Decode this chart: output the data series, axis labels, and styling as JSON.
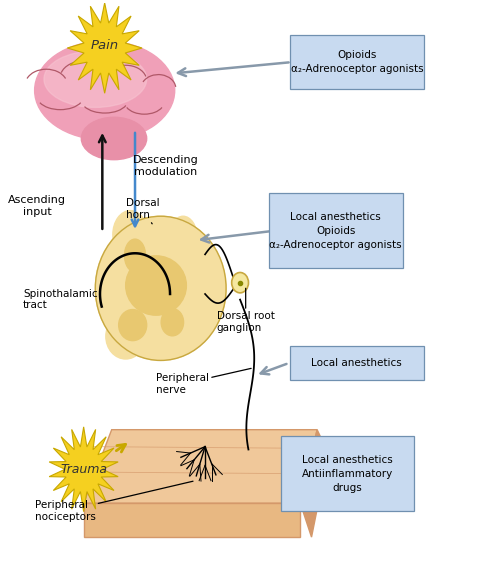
{
  "bg_color": "#ffffff",
  "brain_color": "#f0a0b8",
  "brain_color2": "#e890a8",
  "brain_color3": "#f8c8d4",
  "spine_color": "#f5dfa0",
  "spine_color2": "#e8c870",
  "spine_outline": "#c8a840",
  "skin_color": "#e8b882",
  "skin_color2": "#d4986a",
  "skin_color3": "#f0c89a",
  "pain_star_color": "#f5d020",
  "pain_star_outline": "#c8a800",
  "trauma_star_color": "#f5d020",
  "trauma_star_outline": "#c8a800",
  "box_color": "#c8daf0",
  "box_edge_color": "#7090b0",
  "arrow_black": "#111111",
  "arrow_blue": "#4488cc",
  "arrow_gray": "#8899aa",
  "pain_label": "Pain",
  "trauma_label": "Trauma",
  "box1_text": "Opioids\nα₂-Adrenoceptor agonists",
  "box2_text": "Local anesthetics\nOpioids\nα₂-Adrenoceptor agonists",
  "box3_text": "Local anesthetics",
  "box4_text": "Local anesthetics\nAntiinflammatory\ndrugs",
  "label_ascending": "Ascending\ninput",
  "label_descending": "Descending\nmodulation",
  "label_dorsal_horn": "Dorsal\nhorn",
  "label_spinothalamic": "Spinothalamic\ntract",
  "label_dorsal_root": "Dorsal root\nganglion",
  "label_peripheral_nerve": "Peripheral\nnerve",
  "label_peripheral_nociceptors": "Peripheral\nnociceptors"
}
